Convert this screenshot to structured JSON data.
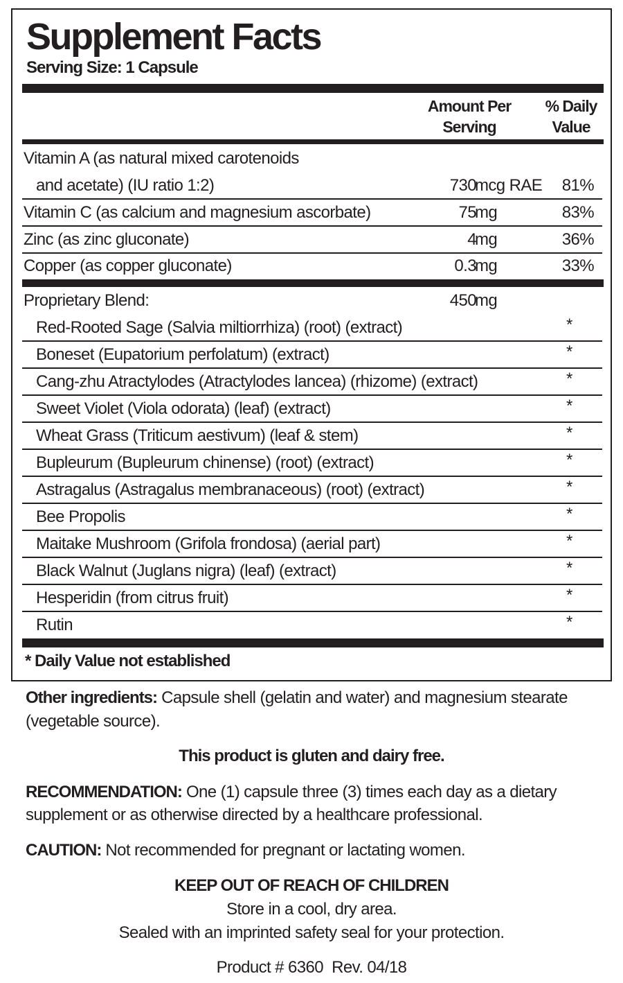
{
  "title": "Supplement Facts",
  "serving_size": "Serving Size: 1 Capsule",
  "headers": {
    "amount_line1": "Amount Per",
    "amount_line2": "Serving",
    "dv_line1": "% Daily",
    "dv_line2": "Value"
  },
  "nutrients": [
    {
      "name_line1": "Vitamin A (as natural mixed carotenoids",
      "name_line2": "and acetate) (IU ratio 1:2)",
      "amount": "730",
      "unit": "mcg RAE",
      "dv": "81%"
    },
    {
      "name": "Vitamin C (as calcium and magnesium ascorbate)",
      "amount": "75",
      "unit": "mg",
      "dv": "83%"
    },
    {
      "name": "Zinc (as zinc gluconate)",
      "amount": "4",
      "unit": "mg",
      "dv": "36%"
    },
    {
      "name": "Copper (as copper gluconate)",
      "amount": "0.3",
      "unit": "mg",
      "dv": "33%"
    }
  ],
  "blend": {
    "name": "Proprietary Blend:",
    "amount": "450",
    "unit": "mg",
    "items": [
      {
        "name": "Red-Rooted Sage (Salvia miltiorrhiza) (root) (extract)",
        "dv": "*"
      },
      {
        "name": "Boneset (Eupatorium perfolatum) (extract)",
        "dv": "*"
      },
      {
        "name": "Cang-zhu Atractylodes (Atractylodes lancea) (rhizome) (extract)",
        "dv": "*"
      },
      {
        "name": "Sweet Violet (Viola odorata) (leaf) (extract)",
        "dv": "*"
      },
      {
        "name": "Wheat Grass (Triticum aestivum) (leaf & stem)",
        "dv": "*"
      },
      {
        "name": "Bupleurum (Bupleurum chinense) (root) (extract)",
        "dv": "*"
      },
      {
        "name": "Astragalus (Astragalus membranaceous) (root) (extract)",
        "dv": "*"
      },
      {
        "name": "Bee Propolis",
        "dv": "*"
      },
      {
        "name": "Maitake Mushroom (Grifola frondosa) (aerial part)",
        "dv": "*"
      },
      {
        "name": "Black Walnut (Juglans nigra) (leaf) (extract)",
        "dv": "*"
      },
      {
        "name": "Hesperidin (from citrus fruit)",
        "dv": "*"
      },
      {
        "name": "Rutin",
        "dv": "*"
      }
    ]
  },
  "footnote": "* Daily Value not established",
  "other_ingredients": {
    "label": "Other ingredients:",
    "line1": " Capsule shell (gelatin and water) and magnesium stearate",
    "line2": "(vegetable source)."
  },
  "gluten": "This product is gluten and dairy free.",
  "recommendation": {
    "label": "RECOMMENDATION:",
    "line1": " One (1) capsule three (3) times each day as a dietary",
    "line2": "supplement or as otherwise directed by a healthcare professional."
  },
  "caution": {
    "label": "CAUTION:",
    "text": " Not recommended for pregnant or lactating women."
  },
  "keep_out": "KEEP OUT OF REACH OF CHILDREN",
  "store": "Store in a cool, dry area.",
  "sealed": "Sealed with an imprinted safety seal for your protection.",
  "product": "Product # 6360  Rev. 04/18"
}
